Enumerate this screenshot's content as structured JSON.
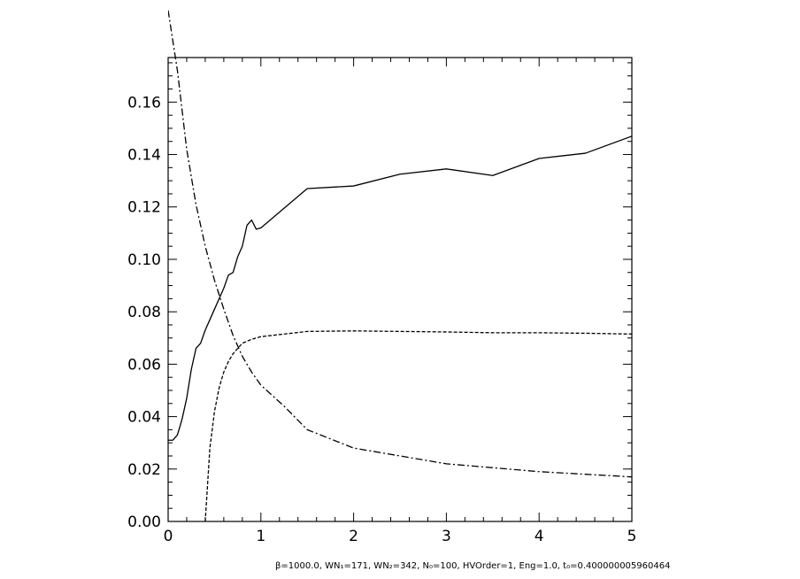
{
  "chart_data": {
    "type": "line",
    "title": "",
    "xlabel": "",
    "ylabel": "",
    "xlim": [
      0,
      5
    ],
    "ylim": [
      0,
      0.177
    ],
    "x_ticks": [
      0,
      1,
      2,
      3,
      4,
      5
    ],
    "x_tick_labels": [
      "0",
      "1",
      "2",
      "3",
      "4",
      "5"
    ],
    "y_ticks": [
      0,
      0.02,
      0.04,
      0.06,
      0.08,
      0.1,
      0.12,
      0.14,
      0.16
    ],
    "y_tick_labels": [
      "0.00",
      "0.02",
      "0.04",
      "0.06",
      "0.08",
      "0.10",
      "0.12",
      "0.14",
      "0.16"
    ],
    "grid": false,
    "legend": "none",
    "series": [
      {
        "style": "solid",
        "x": [
          0,
          0.05,
          0.1,
          0.15,
          0.2,
          0.25,
          0.3,
          0.35,
          0.4,
          0.45,
          0.5,
          0.55,
          0.6,
          0.65,
          0.7,
          0.75,
          0.8,
          0.85,
          0.9,
          0.95,
          1.0,
          1.5,
          2.0,
          2.5,
          3.0,
          3.5,
          4.0,
          4.5,
          5.0
        ],
        "y": [
          0.031,
          0.031,
          0.033,
          0.039,
          0.047,
          0.058,
          0.066,
          0.068,
          0.073,
          0.077,
          0.081,
          0.085,
          0.089,
          0.094,
          0.095,
          0.101,
          0.105,
          0.113,
          0.115,
          0.1115,
          0.112,
          0.127,
          0.128,
          0.1325,
          0.1345,
          0.132,
          0.1385,
          0.1405,
          0.147
        ]
      },
      {
        "style": "dashed",
        "x": [
          0.4,
          0.45,
          0.5,
          0.55,
          0.6,
          0.65,
          0.7,
          0.75,
          0.8,
          0.9,
          1.0,
          1.5,
          2.0,
          2.5,
          3.0,
          3.5,
          4.0,
          4.5,
          5.0
        ],
        "y": [
          0.0,
          0.028,
          0.042,
          0.051,
          0.057,
          0.061,
          0.064,
          0.066,
          0.068,
          0.0695,
          0.0705,
          0.0725,
          0.0727,
          0.0725,
          0.0723,
          0.072,
          0.072,
          0.0718,
          0.0715
        ]
      },
      {
        "style": "dashdot",
        "x": [
          0,
          0.1,
          0.2,
          0.3,
          0.4,
          0.5,
          0.6,
          0.7,
          0.8,
          0.9,
          1.0,
          1.25,
          1.5,
          2.0,
          2.5,
          3.0,
          3.5,
          4.0,
          4.5,
          5.0
        ],
        "y": [
          0.195,
          0.172,
          0.142,
          0.121,
          0.105,
          0.092,
          0.081,
          0.071,
          0.063,
          0.057,
          0.052,
          0.044,
          0.035,
          0.028,
          0.025,
          0.022,
          0.0205,
          0.019,
          0.018,
          0.017
        ]
      }
    ]
  },
  "caption": "β=1000.0, WN₁=171, WN₂=342, N₀=100, HVOrder=1, Eng=1.0, t₀=0.400000005960464"
}
